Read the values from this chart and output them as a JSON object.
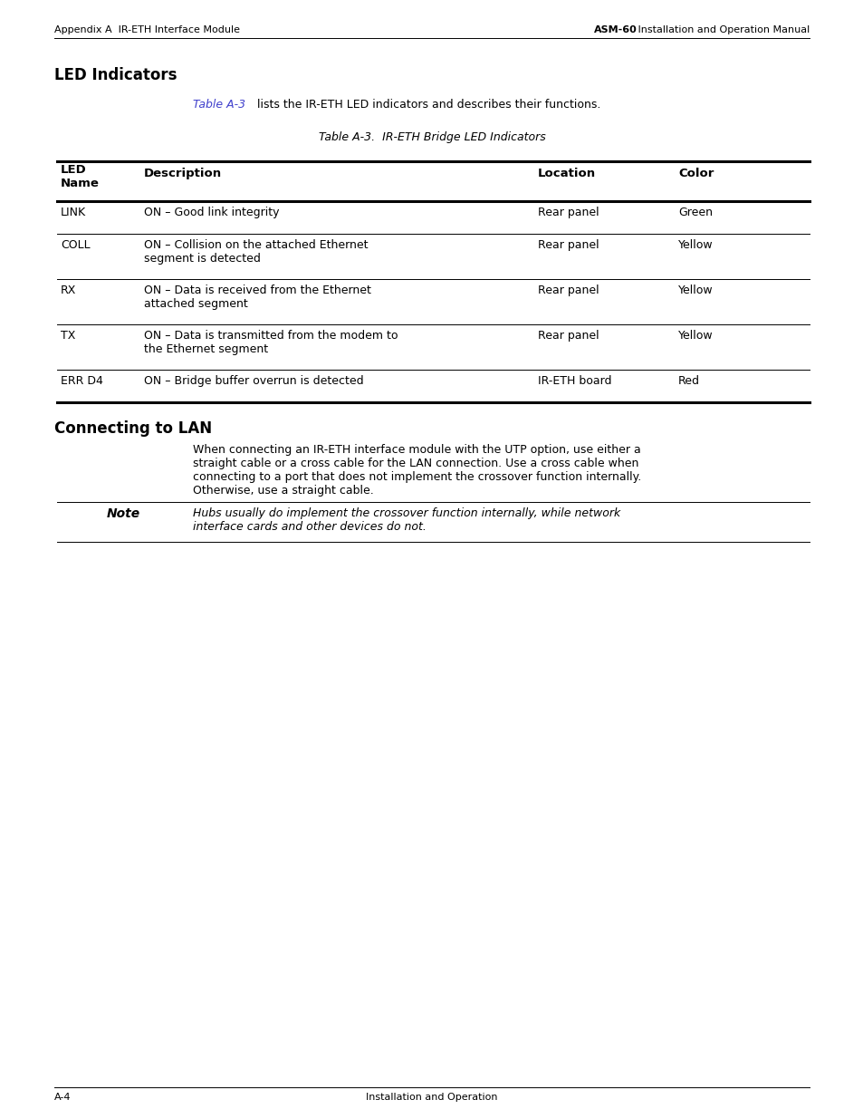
{
  "page_bg": "#ffffff",
  "header_left": "Appendix A  IR-ETH Interface Module",
  "header_right_bold": "ASM-60",
  "header_right_normal": " Installation and Operation Manual",
  "footer_left": "A-4",
  "footer_middle": "Installation and Operation",
  "section1_title": "LED Indicators",
  "section1_intro_link": "Table A-3",
  "section1_intro_rest": " lists the IR-ETH LED indicators and describes their functions.",
  "table_title": "Table A-3.  IR-ETH Bridge LED Indicators",
  "table_rows": [
    [
      "LINK",
      "ON – Good link integrity",
      "Rear panel",
      "Green"
    ],
    [
      "COLL",
      "ON – Collision on the attached Ethernet\nsegment is detected",
      "Rear panel",
      "Yellow"
    ],
    [
      "RX",
      "ON – Data is received from the Ethernet\nattached segment",
      "Rear panel",
      "Yellow"
    ],
    [
      "TX",
      "ON – Data is transmitted from the modem to\nthe Ethernet segment",
      "Rear panel",
      "Yellow"
    ],
    [
      "ERR D4",
      "ON – Bridge buffer overrun is detected",
      "IR-ETH board",
      "Red"
    ]
  ],
  "section2_title": "Connecting to LAN",
  "section2_para": "When connecting an IR-ETH interface module with the UTP option, use either a\nstraight cable or a cross cable for the LAN connection. Use a cross cable when\nconnecting to a port that does not implement the crossover function internally.\nOtherwise, use a straight cable.",
  "note_label": "Note",
  "note_text": "Hubs usually do implement the crossover function internally, while network\ninterface cards and other devices do not.",
  "link_color": "#4040cc",
  "text_color": "#000000",
  "font_size_header": 8.0,
  "font_size_section": 12,
  "font_size_body": 9.0,
  "font_size_table_header": 9.5,
  "font_size_table_body": 9.0,
  "font_size_footer": 8.0,
  "font_size_note_label": 10
}
